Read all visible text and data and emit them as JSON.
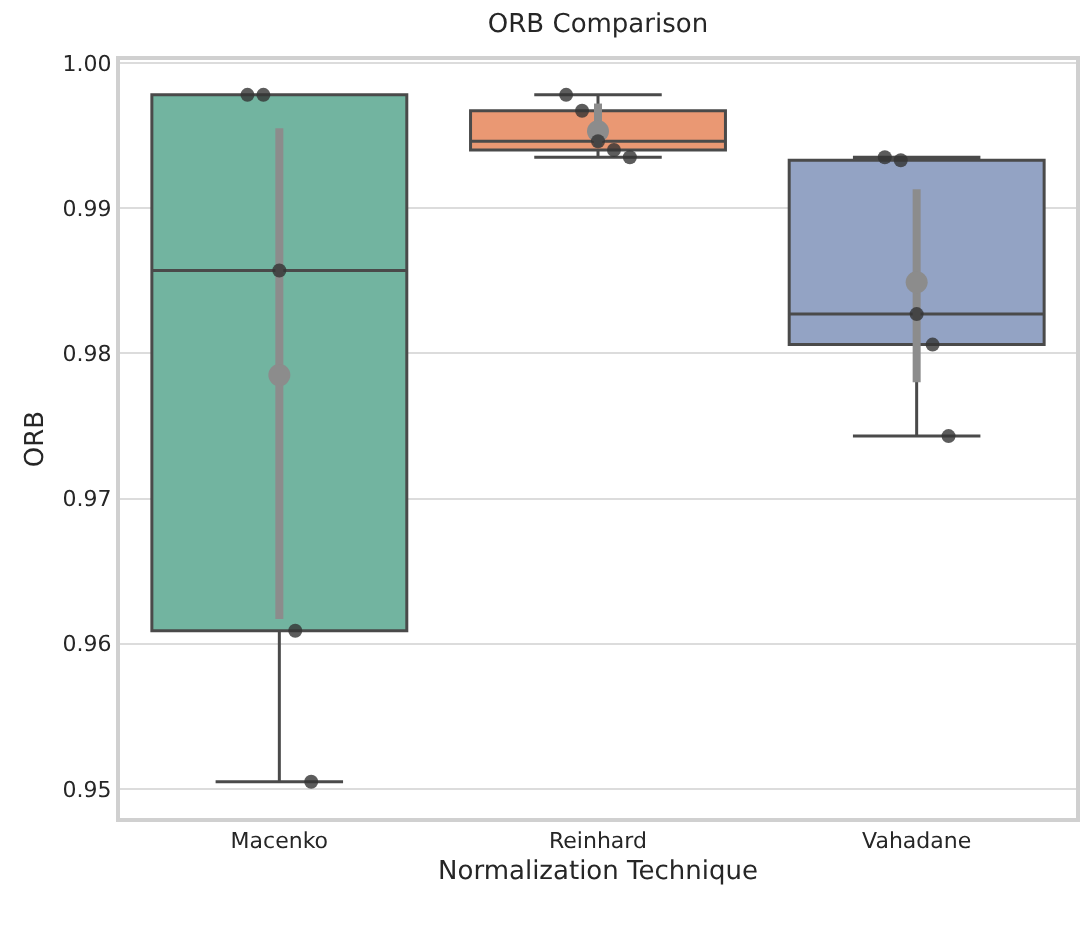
{
  "chart_data": {
    "type": "box",
    "title": "ORB Comparison",
    "xlabel": "Normalization Technique",
    "ylabel": "ORB",
    "categories": [
      "Macenko",
      "Reinhard",
      "Vahadane"
    ],
    "colors": [
      "#72b4a0",
      "#ea9873",
      "#93a3c4"
    ],
    "boxes": [
      {
        "low": 0.9505,
        "q1": 0.9609,
        "median": 0.9857,
        "q3": 0.9978,
        "high": 0.9978
      },
      {
        "low": 0.9935,
        "q1": 0.994,
        "median": 0.9946,
        "q3": 0.9967,
        "high": 0.9978
      },
      {
        "low": 0.9743,
        "q1": 0.9806,
        "median": 0.9827,
        "q3": 0.9933,
        "high": 0.9935
      }
    ],
    "series": [
      {
        "type": "scatter",
        "color": "#333333",
        "x": [
          "Macenko",
          "Macenko",
          "Macenko",
          "Macenko",
          "Macenko",
          "Reinhard",
          "Reinhard",
          "Reinhard",
          "Reinhard",
          "Reinhard",
          "Vahadane",
          "Vahadane",
          "Vahadane",
          "Vahadane",
          "Vahadane"
        ],
        "values": [
          0.9978,
          0.9978,
          0.9857,
          0.9609,
          0.9505,
          0.9978,
          0.9967,
          0.9946,
          0.994,
          0.9935,
          0.9935,
          0.9933,
          0.9827,
          0.9806,
          0.9743
        ]
      },
      {
        "type": "scatter",
        "color": "#8c8c8c",
        "x": [
          "Macenko",
          "Reinhard",
          "Vahadane"
        ],
        "values": [
          0.9785,
          0.9953,
          0.9849
        ],
        "errors": [
          [
            0.9617,
            0.9955
          ],
          [
            0.9942,
            0.9972
          ],
          [
            0.978,
            0.9913
          ]
        ]
      }
    ],
    "ylim": [
      0.948,
      1.0002
    ],
    "yticks": [
      {
        "value": 0.95,
        "label": "0.95"
      },
      {
        "value": 0.96,
        "label": "0.96"
      },
      {
        "value": 0.97,
        "label": "0.97"
      },
      {
        "value": 0.98,
        "label": "0.98"
      },
      {
        "value": 0.99,
        "label": "0.99"
      },
      {
        "value": 1.0,
        "label": "1.00"
      }
    ],
    "grid": "y"
  }
}
